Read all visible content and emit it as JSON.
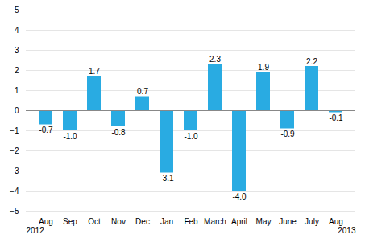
{
  "chart_data": {
    "type": "bar",
    "categories": [
      "Aug",
      "Sep",
      "Oct",
      "Nov",
      "Dec",
      "Jan",
      "Feb",
      "March",
      "April",
      "May",
      "June",
      "July",
      "Aug"
    ],
    "values": [
      -0.7,
      -1.0,
      1.7,
      -0.8,
      0.7,
      -3.1,
      -1.0,
      2.3,
      -4.0,
      1.9,
      -0.9,
      2.2,
      -0.1
    ],
    "value_labels": [
      "-0.7",
      "-1.0",
      "1.7",
      "-0.8",
      "0.7",
      "-3.1",
      "-1.0",
      "2.3",
      "-4.0",
      "1.9",
      "-0.9",
      "2.2",
      "-0.1"
    ],
    "data_labels": true,
    "color": "#29abe2",
    "ylim": [
      -5,
      5
    ],
    "yticks": [
      -5,
      -4,
      -3,
      -2,
      -1,
      0,
      1,
      2,
      3,
      4,
      5
    ],
    "grid": true,
    "annotations": [
      "2012",
      "2013"
    ]
  }
}
